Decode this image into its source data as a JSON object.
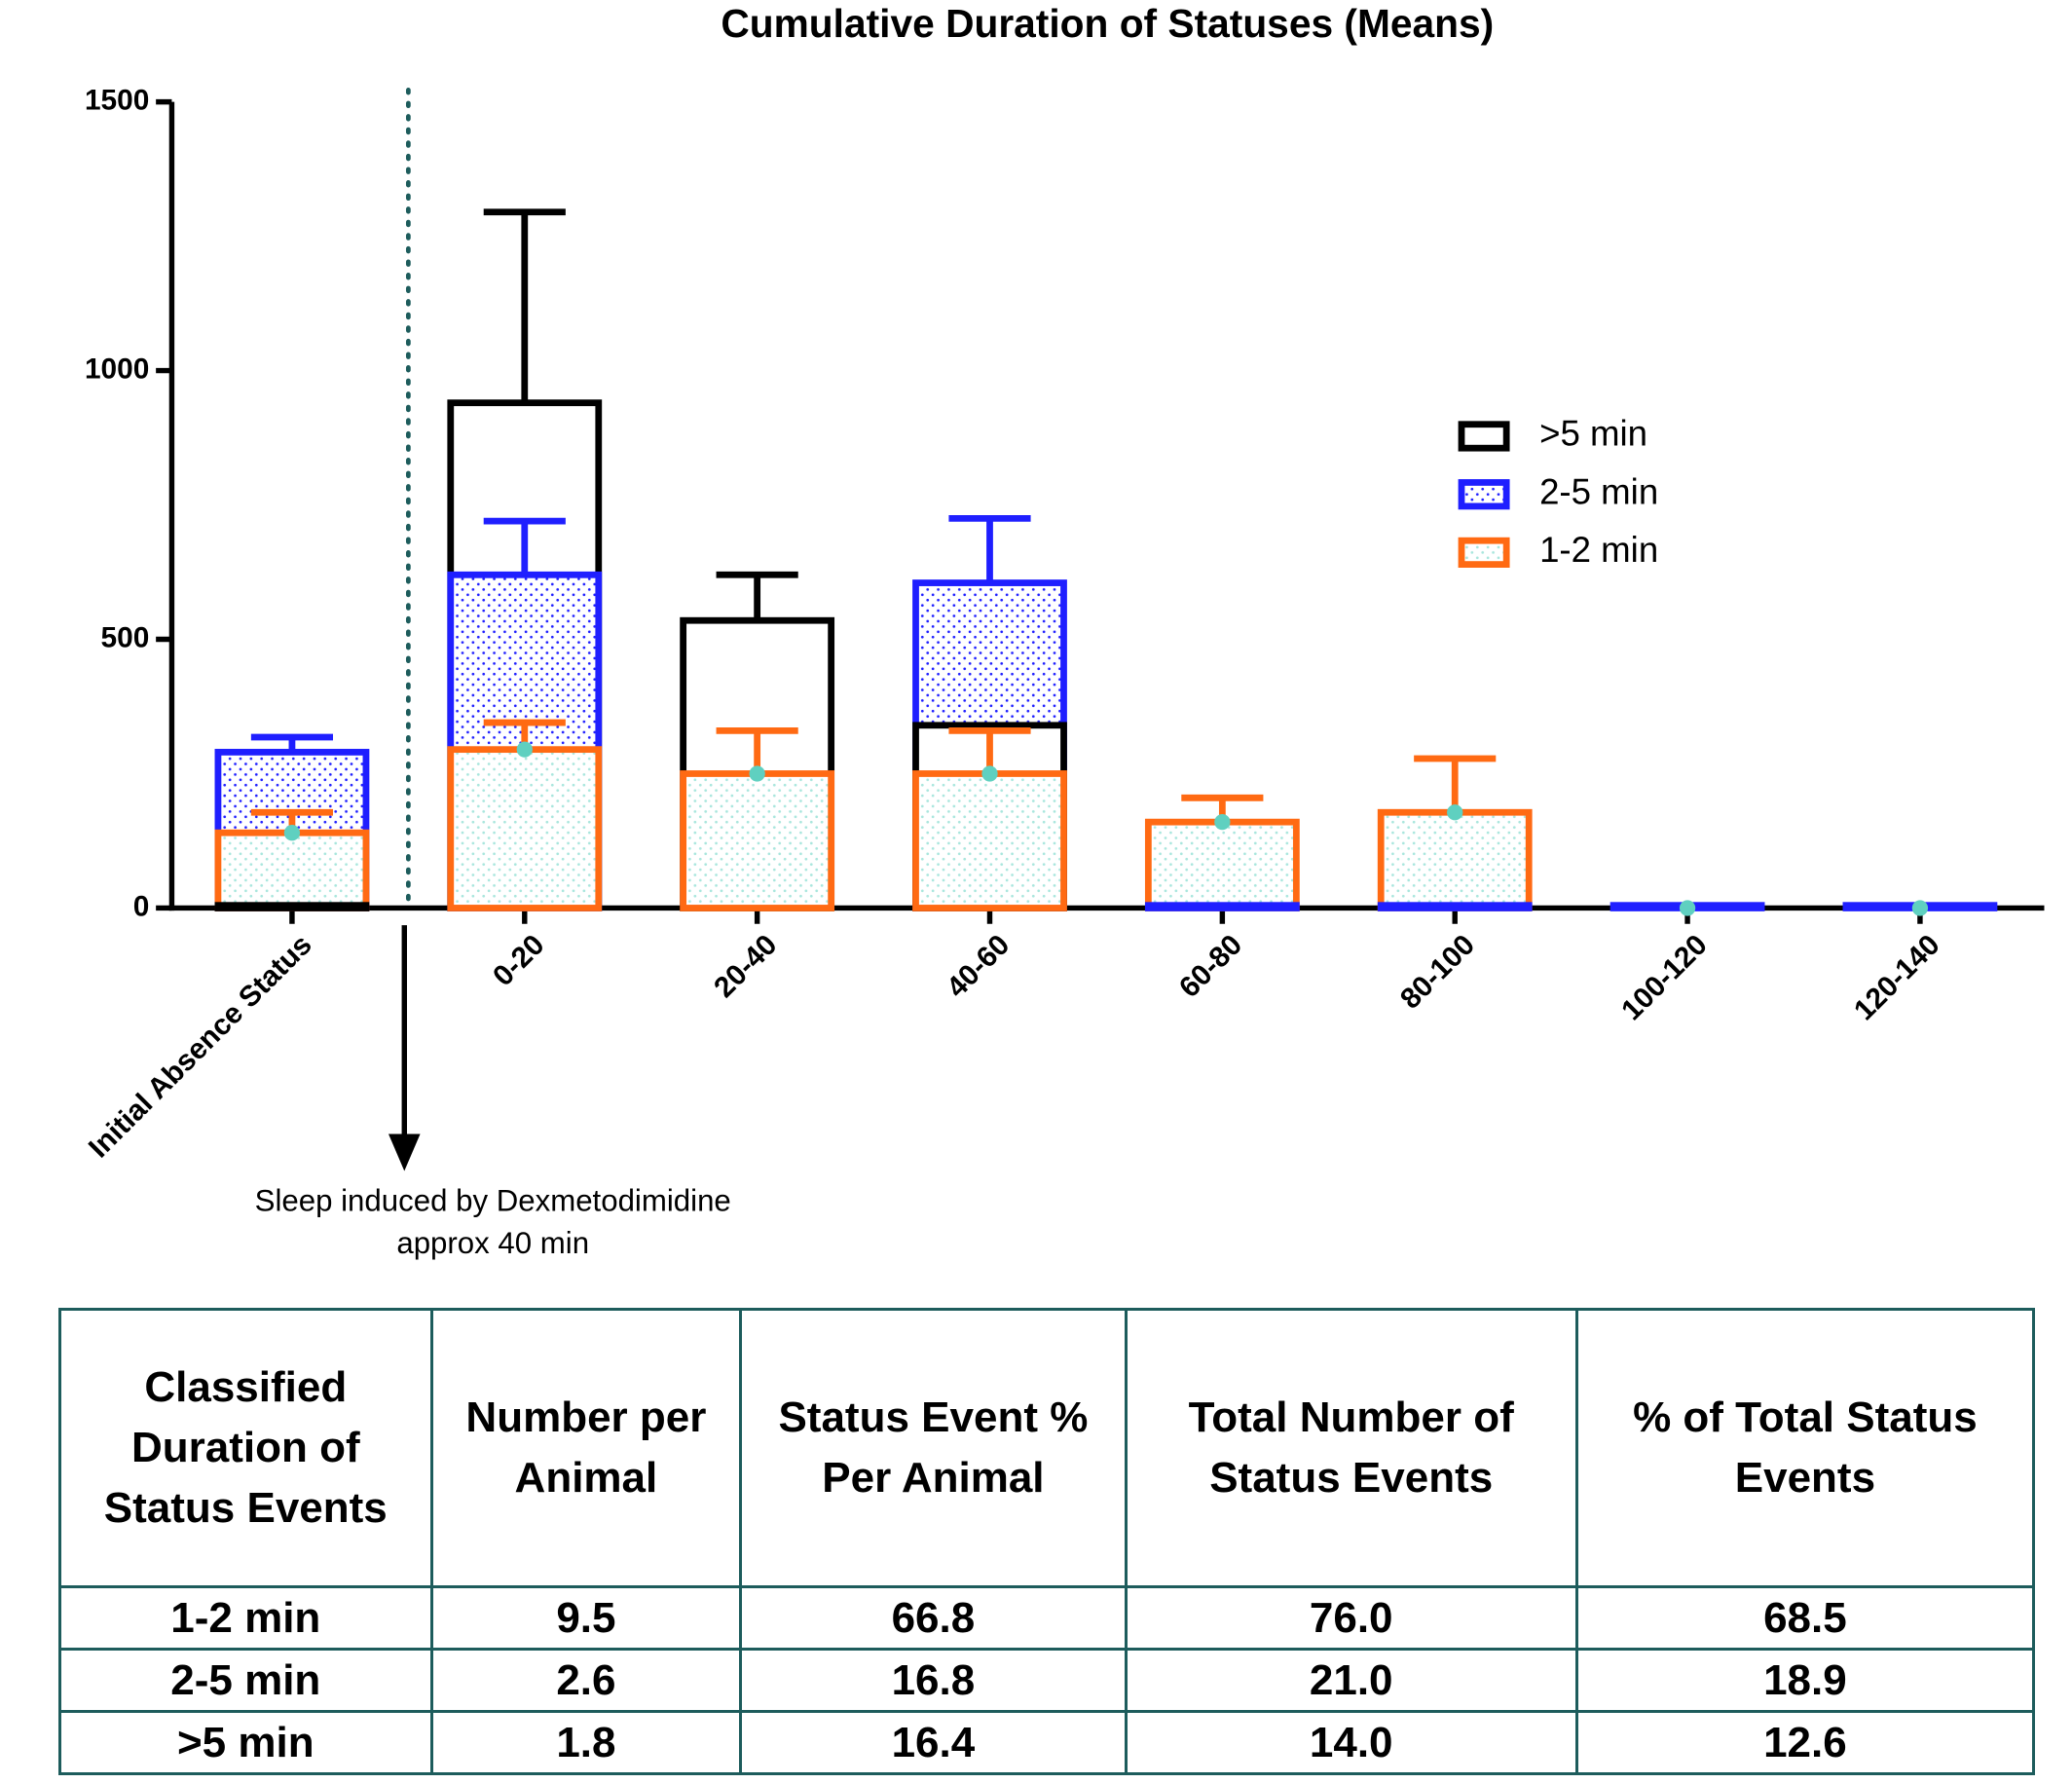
{
  "chart_data": {
    "type": "bar",
    "title": "Cumulative Duration of Statuses (Means)",
    "categories": [
      "Initial Absence Status",
      "0-20",
      "20-40",
      "40-60",
      "60-80",
      "80-100",
      "100-120",
      "120-140"
    ],
    "series": [
      {
        "name": ">5 min",
        "color": "#000000",
        "values": [
          5,
          940,
          535,
          340,
          0,
          0,
          0,
          0
        ],
        "errors": [
          null,
          355,
          85,
          null,
          null,
          null,
          null,
          null
        ]
      },
      {
        "name": "2-5 min",
        "color": "#1f1fff",
        "values": [
          290,
          620,
          0,
          605,
          5,
          5,
          5,
          5
        ],
        "errors": [
          28,
          100,
          null,
          120,
          null,
          null,
          null,
          null
        ]
      },
      {
        "name": "1-2 min",
        "color": "#ff6a13",
        "values": [
          140,
          295,
          250,
          250,
          160,
          178,
          0,
          0
        ],
        "errors": [
          38,
          50,
          80,
          80,
          45,
          100,
          null,
          null
        ]
      }
    ],
    "mean_marker_color": "#5fd0c0",
    "ylim": [
      0,
      1500
    ],
    "yticks": [
      0,
      500,
      1000,
      1500
    ],
    "grid": false,
    "legend": "upper right",
    "annotation_lines": [
      "Sleep induced by Dexmetodimidine",
      "approx 40 min"
    ]
  },
  "table": {
    "header": [
      "Classified Duration of Status Events",
      "Number per Animal",
      "Status Event % Per Animal",
      "Total Number of Status Events",
      "% of Total Status Events"
    ],
    "rows": [
      [
        "1-2 min",
        "9.5",
        "66.8",
        "76.0",
        "68.5"
      ],
      [
        "2-5 min",
        "2.6",
        "16.8",
        "21.0",
        "18.9"
      ],
      [
        ">5 min",
        "1.8",
        "16.4",
        "14.0",
        "12.6"
      ]
    ]
  }
}
